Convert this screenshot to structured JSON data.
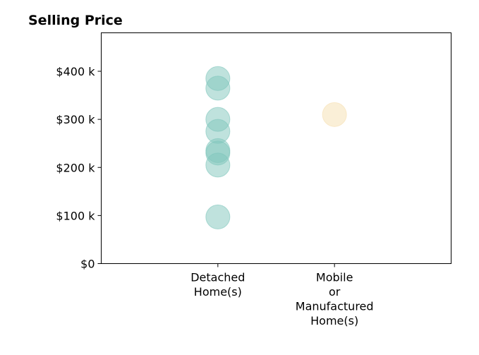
{
  "chart_data": {
    "type": "scatter",
    "title": "Selling Price",
    "xlabel": "",
    "ylabel": "",
    "categories": [
      [
        "Detached",
        "Home(s)"
      ],
      [
        "Mobile",
        "or",
        "Manufactured",
        "Home(s)"
      ]
    ],
    "y_ticks": [
      {
        "value": 0,
        "label": "$0"
      },
      {
        "value": 100000,
        "label": "$100 k"
      },
      {
        "value": 200000,
        "label": "$200 k"
      },
      {
        "value": 300000,
        "label": "$300 k"
      },
      {
        "value": 400000,
        "label": "$400 k"
      }
    ],
    "ylim": [
      0,
      480000
    ],
    "x_range": [
      -1,
      2
    ],
    "grid": false,
    "series": [
      {
        "category_index": 0,
        "color": "#7fc6bc",
        "values": [
          385000,
          365000,
          300000,
          275000,
          235000,
          230000,
          205000,
          97000
        ]
      },
      {
        "category_index": 1,
        "color": "#f6dfb0",
        "values": [
          310000
        ]
      }
    ]
  }
}
